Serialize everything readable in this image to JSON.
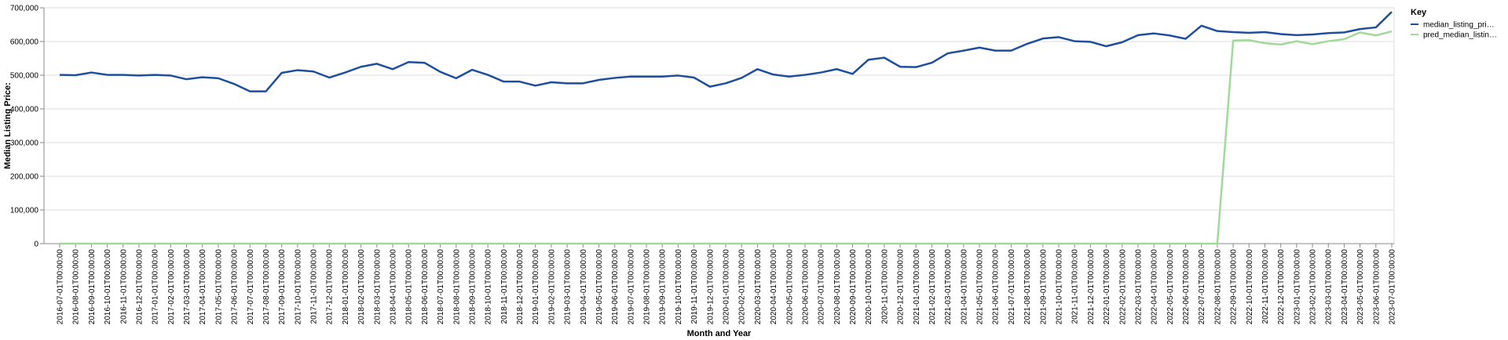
{
  "chart_data": {
    "type": "line",
    "xlabel": "Month and Year",
    "ylabel": "Median Listing Price:",
    "ylim": [
      0,
      700000
    ],
    "y_ticks": [
      "0",
      "100,000",
      "200,000",
      "300,000",
      "400,000",
      "500,000",
      "600,000",
      "700,000"
    ],
    "grid": true,
    "legend": {
      "title": "Key",
      "position": "top-right",
      "items": [
        {
          "label": "median_listing_pri…",
          "color": "#1f4e9c"
        },
        {
          "label": "pred_median_listin…",
          "color": "#a1d99b"
        }
      ]
    },
    "x": [
      "2016-07-01T00:00:00",
      "2016-08-01T00:00:00",
      "2016-09-01T00:00:00",
      "2016-10-01T00:00:00",
      "2016-11-01T00:00:00",
      "2016-12-01T00:00:00",
      "2017-01-01T00:00:00",
      "2017-02-01T00:00:00",
      "2017-03-01T00:00:00",
      "2017-04-01T00:00:00",
      "2017-05-01T00:00:00",
      "2017-06-01T00:00:00",
      "2017-07-01T00:00:00",
      "2017-08-01T00:00:00",
      "2017-09-01T00:00:00",
      "2017-10-01T00:00:00",
      "2017-11-01T00:00:00",
      "2017-12-01T00:00:00",
      "2018-01-01T00:00:00",
      "2018-02-01T00:00:00",
      "2018-03-01T00:00:00",
      "2018-04-01T00:00:00",
      "2018-05-01T00:00:00",
      "2018-06-01T00:00:00",
      "2018-07-01T00:00:00",
      "2018-08-01T00:00:00",
      "2018-09-01T00:00:00",
      "2018-10-01T00:00:00",
      "2018-11-01T00:00:00",
      "2018-12-01T00:00:00",
      "2019-01-01T00:00:00",
      "2019-02-01T00:00:00",
      "2019-03-01T00:00:00",
      "2019-04-01T00:00:00",
      "2019-05-01T00:00:00",
      "2019-06-01T00:00:00",
      "2019-07-01T00:00:00",
      "2019-08-01T00:00:00",
      "2019-09-01T00:00:00",
      "2019-10-01T00:00:00",
      "2019-11-01T00:00:00",
      "2019-12-01T00:00:00",
      "2020-01-01T00:00:00",
      "2020-02-01T00:00:00",
      "2020-03-01T00:00:00",
      "2020-04-01T00:00:00",
      "2020-05-01T00:00:00",
      "2020-06-01T00:00:00",
      "2020-07-01T00:00:00",
      "2020-08-01T00:00:00",
      "2020-09-01T00:00:00",
      "2020-10-01T00:00:00",
      "2020-11-01T00:00:00",
      "2020-12-01T00:00:00",
      "2021-01-01T00:00:00",
      "2021-02-01T00:00:00",
      "2021-03-01T00:00:00",
      "2021-04-01T00:00:00",
      "2021-05-01T00:00:00",
      "2021-06-01T00:00:00",
      "2021-07-01T00:00:00",
      "2021-08-01T00:00:00",
      "2021-09-01T00:00:00",
      "2021-10-01T00:00:00",
      "2021-11-01T00:00:00",
      "2021-12-01T00:00:00",
      "2022-01-01T00:00:00",
      "2022-02-01T00:00:00",
      "2022-03-01T00:00:00",
      "2022-04-01T00:00:00",
      "2022-05-01T00:00:00",
      "2022-06-01T00:00:00",
      "2022-07-01T00:00:00",
      "2022-08-01T00:00:00",
      "2022-09-01T00:00:00",
      "2022-10-01T00:00:00",
      "2022-11-01T00:00:00",
      "2022-12-01T00:00:00",
      "2023-01-01T00:00:00",
      "2023-02-01T00:00:00",
      "2023-03-01T00:00:00",
      "2023-04-01T00:00:00",
      "2023-05-01T00:00:00",
      "2023-06-01T00:00:00",
      "2023-07-01T00:00:00"
    ],
    "series": [
      {
        "name": "median_listing_pri…",
        "color": "#1f4e9c",
        "values": [
          501000,
          500000,
          508000,
          501000,
          501000,
          499000,
          501000,
          499000,
          488000,
          494000,
          491000,
          474000,
          452000,
          452000,
          507000,
          515000,
          511000,
          493000,
          508000,
          525000,
          534000,
          518000,
          539000,
          537000,
          510000,
          491000,
          516000,
          501000,
          481000,
          481000,
          469000,
          479000,
          476000,
          476000,
          486000,
          492000,
          496000,
          496000,
          496000,
          499000,
          493000,
          466000,
          476000,
          492000,
          518000,
          502000,
          496000,
          501000,
          508000,
          518000,
          504000,
          546000,
          552000,
          525000,
          524000,
          537000,
          565000,
          573000,
          582000,
          573000,
          573000,
          593000,
          609000,
          613000,
          601000,
          599000,
          586000,
          598000,
          619000,
          624000,
          618000,
          608000,
          647000,
          631000,
          628000,
          626000,
          628000,
          622000,
          619000,
          621000,
          625000,
          627000,
          637000,
          642000,
          688000
        ]
      },
      {
        "name": "pred_median_listin…",
        "color": "#a1d99b",
        "values": [
          0,
          0,
          0,
          0,
          0,
          0,
          0,
          0,
          0,
          0,
          0,
          0,
          0,
          0,
          0,
          0,
          0,
          0,
          0,
          0,
          0,
          0,
          0,
          0,
          0,
          0,
          0,
          0,
          0,
          0,
          0,
          0,
          0,
          0,
          0,
          0,
          0,
          0,
          0,
          0,
          0,
          0,
          0,
          0,
          0,
          0,
          0,
          0,
          0,
          0,
          0,
          0,
          0,
          0,
          0,
          0,
          0,
          0,
          0,
          0,
          0,
          0,
          0,
          0,
          0,
          0,
          0,
          0,
          0,
          0,
          0,
          0,
          0,
          0,
          603000,
          604000,
          595000,
          591000,
          601000,
          592000,
          601000,
          607000,
          627000,
          618000,
          630000
        ]
      }
    ]
  }
}
